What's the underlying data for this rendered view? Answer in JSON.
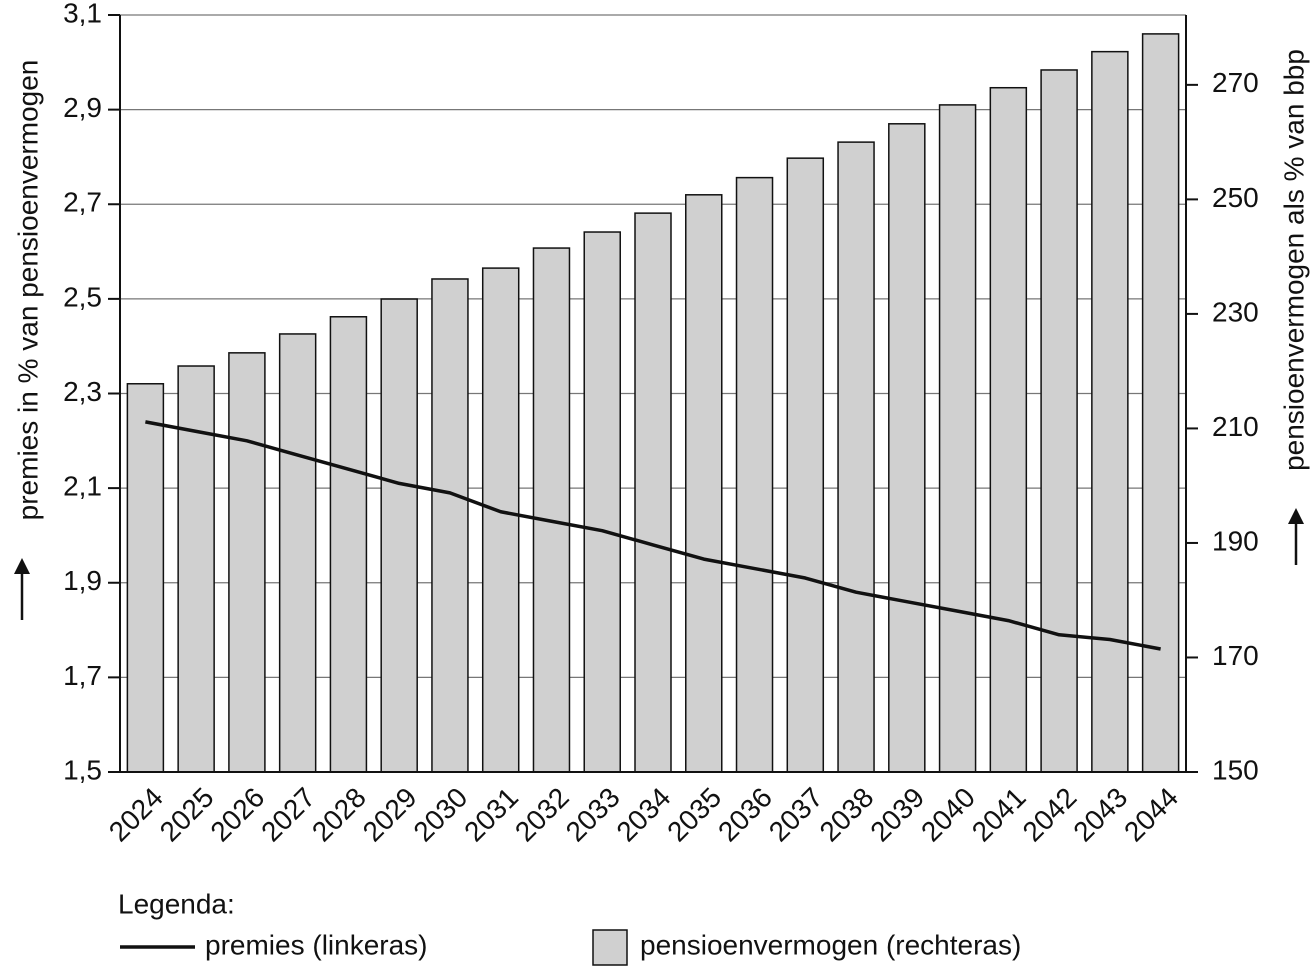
{
  "chart_data": {
    "type": "bar_line",
    "y_label": "premies in % van pensioenvermogen",
    "y2_label": "pensioenvermogen als % van bbp",
    "legend_title": "Legenda:",
    "categories": [
      "2024",
      "2025",
      "2026",
      "2027",
      "2028",
      "2029",
      "2030",
      "2031",
      "2032",
      "2033",
      "2034",
      "2035",
      "2036",
      "2037",
      "2038",
      "2039",
      "2040",
      "2041",
      "2042",
      "2043",
      "2044"
    ],
    "series": [
      {
        "name": "premies (linkeras)",
        "type": "line",
        "color": "#111111",
        "axis": "y",
        "values": [
          2.24,
          2.22,
          2.2,
          2.17,
          2.14,
          2.11,
          2.09,
          2.05,
          2.03,
          2.01,
          1.98,
          1.95,
          1.93,
          1.91,
          1.88,
          1.86,
          1.84,
          1.82,
          1.79,
          1.78,
          1.76
        ]
      },
      {
        "name": "pensioenvermogen (rechteras)",
        "type": "bar",
        "color": "#d0d0d0",
        "axis": "y2",
        "values": [
          217.8,
          220.9,
          223.2,
          226.5,
          229.5,
          232.6,
          236.1,
          238.0,
          241.5,
          244.3,
          247.6,
          250.8,
          253.8,
          257.2,
          260.0,
          263.2,
          266.5,
          269.5,
          272.6,
          275.8,
          278.9
        ]
      }
    ],
    "ylim": [
      1.5,
      3.1
    ],
    "yticks": [
      {
        "value": 1.5,
        "label": "1,5"
      },
      {
        "value": 1.7,
        "label": "1,7"
      },
      {
        "value": 1.9,
        "label": "1,9"
      },
      {
        "value": 2.1,
        "label": "2,1"
      },
      {
        "value": 2.3,
        "label": "2,3"
      },
      {
        "value": 2.5,
        "label": "2,5"
      },
      {
        "value": 2.7,
        "label": "2,7"
      },
      {
        "value": 2.9,
        "label": "2,9"
      },
      {
        "value": 3.1,
        "label": "3,1"
      }
    ],
    "y2lim": [
      150,
      282.2
    ],
    "y2ticks": [
      150,
      170,
      190,
      210,
      230,
      250,
      270
    ],
    "grid": true
  }
}
